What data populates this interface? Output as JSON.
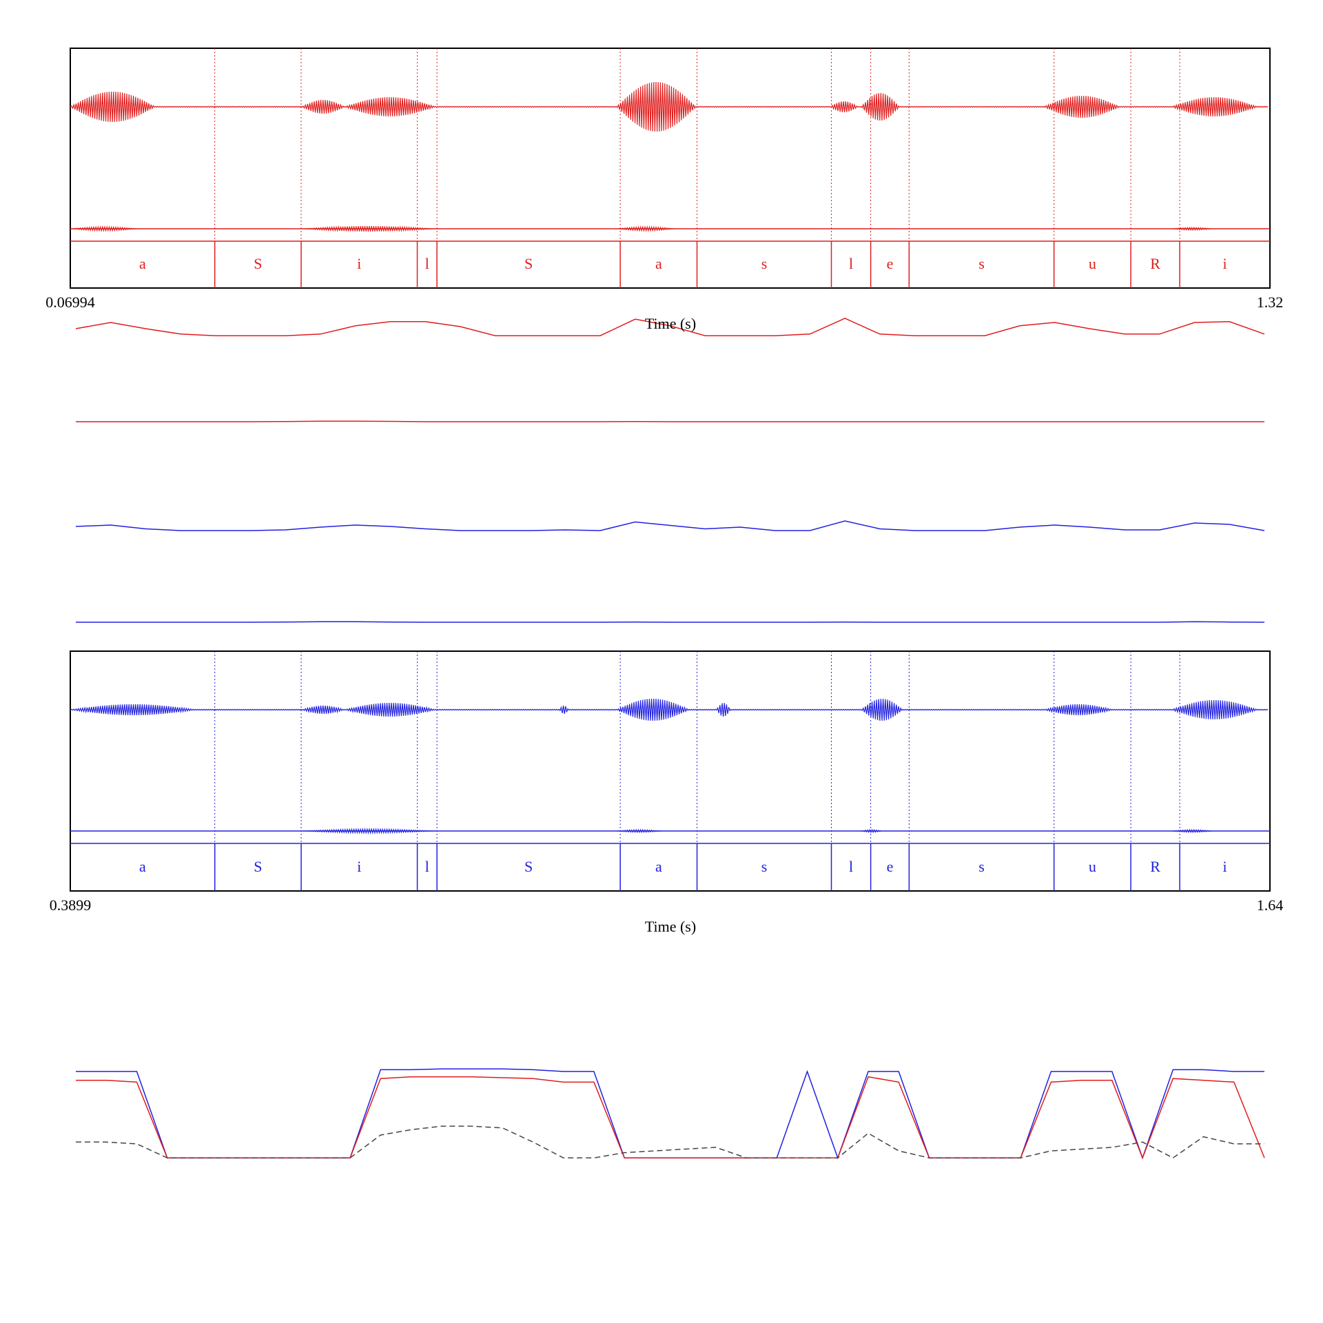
{
  "chart_data": [
    {
      "type": "line",
      "name": "waveform-red",
      "color": "#e01c1c",
      "x_start": "0.06994",
      "x_end": "1.32",
      "xlabel": "Time (s)",
      "segments": [
        "a",
        "S",
        "i",
        "l",
        "S",
        "a",
        "s",
        "l",
        "e",
        "s",
        "u",
        "R",
        "i"
      ],
      "boundaries_s": [
        0.06994,
        0.2205,
        0.3105,
        0.4315,
        0.452,
        0.643,
        0.723,
        0.863,
        0.904,
        0.944,
        1.095,
        1.175,
        1.226,
        1.32
      ]
    },
    {
      "type": "line",
      "name": "feature-curves",
      "series": [
        {
          "color": "#e01c1c",
          "values": [
            0.55,
            0.7,
            0.55,
            0.42,
            0.38,
            0.38,
            0.38,
            0.42,
            0.62,
            0.72,
            0.72,
            0.6,
            0.38,
            0.38,
            0.38,
            0.38,
            0.78,
            0.62,
            0.38,
            0.38,
            0.38,
            0.42,
            0.8,
            0.42,
            0.38,
            0.38,
            0.38,
            0.62,
            0.7,
            0.55,
            0.42,
            0.42,
            0.7,
            0.72,
            0.42
          ]
        },
        {
          "color": "#e01c1c",
          "values": [
            0.5,
            0.5,
            0.5,
            0.5,
            0.5,
            0.5,
            0.52,
            0.55,
            0.55,
            0.53,
            0.5,
            0.5,
            0.5,
            0.5,
            0.5,
            0.5,
            0.52,
            0.5,
            0.5,
            0.5,
            0.5,
            0.5,
            0.5,
            0.5,
            0.5,
            0.5,
            0.5,
            0.5,
            0.5,
            0.5,
            0.5,
            0.5,
            0.5,
            0.5,
            0.5
          ]
        },
        {
          "color": "#2020e0",
          "values": [
            0.62,
            0.66,
            0.55,
            0.5,
            0.5,
            0.5,
            0.52,
            0.6,
            0.66,
            0.62,
            0.55,
            0.5,
            0.5,
            0.5,
            0.52,
            0.5,
            0.75,
            0.65,
            0.55,
            0.6,
            0.5,
            0.5,
            0.78,
            0.55,
            0.5,
            0.5,
            0.5,
            0.6,
            0.66,
            0.6,
            0.52,
            0.52,
            0.72,
            0.68,
            0.5
          ]
        },
        {
          "color": "#2020e0",
          "values": [
            0.5,
            0.5,
            0.5,
            0.5,
            0.5,
            0.5,
            0.52,
            0.55,
            0.55,
            0.52,
            0.5,
            0.5,
            0.5,
            0.5,
            0.5,
            0.5,
            0.52,
            0.5,
            0.5,
            0.5,
            0.5,
            0.5,
            0.52,
            0.5,
            0.5,
            0.5,
            0.5,
            0.5,
            0.5,
            0.5,
            0.5,
            0.5,
            0.55,
            0.52,
            0.5
          ]
        }
      ]
    },
    {
      "type": "line",
      "name": "waveform-blue",
      "color": "#2020e0",
      "x_start": "0.3899",
      "x_end": "1.64",
      "xlabel": "Time (s)",
      "segments": [
        "a",
        "S",
        "i",
        "l",
        "S",
        "a",
        "s",
        "l",
        "e",
        "s",
        "u",
        "R",
        "i"
      ],
      "boundaries_s": [
        0.3899,
        0.5405,
        0.6305,
        0.7515,
        0.772,
        0.963,
        1.043,
        1.183,
        1.224,
        1.264,
        1.415,
        1.495,
        1.546,
        1.64
      ]
    },
    {
      "type": "line",
      "name": "bottom-curves",
      "ylim": [
        0,
        1
      ],
      "series": [
        {
          "color": "#2020e0",
          "dashed": false,
          "values": [
            1.0,
            1.0,
            1.0,
            0.02,
            0.02,
            0.02,
            0.02,
            0.02,
            0.02,
            0.02,
            1.02,
            1.02,
            1.03,
            1.03,
            1.03,
            1.02,
            1.0,
            1.0,
            0.02,
            0.02,
            0.02,
            0.02,
            0.02,
            0.02,
            1.0,
            0.02,
            1.0,
            1.0,
            0.02,
            0.02,
            0.02,
            0.02,
            1.0,
            1.0,
            1.0,
            0.02,
            1.02,
            1.02,
            1.0,
            1.0
          ]
        },
        {
          "color": "#e01c1c",
          "dashed": false,
          "values": [
            0.9,
            0.9,
            0.88,
            0.02,
            0.02,
            0.02,
            0.02,
            0.02,
            0.02,
            0.02,
            0.92,
            0.94,
            0.94,
            0.94,
            0.93,
            0.92,
            0.88,
            0.88,
            0.02,
            0.02,
            0.02,
            0.02,
            0.02,
            0.02,
            0.02,
            0.02,
            0.94,
            0.88,
            0.02,
            0.02,
            0.02,
            0.02,
            0.88,
            0.9,
            0.9,
            0.02,
            0.92,
            0.9,
            0.88,
            0.02
          ]
        },
        {
          "color": "#444444",
          "dashed": true,
          "values": [
            0.2,
            0.2,
            0.18,
            0.02,
            0.02,
            0.02,
            0.02,
            0.02,
            0.02,
            0.02,
            0.28,
            0.34,
            0.38,
            0.38,
            0.36,
            0.2,
            0.02,
            0.02,
            0.08,
            0.1,
            0.12,
            0.14,
            0.02,
            0.02,
            0.02,
            0.02,
            0.3,
            0.1,
            0.02,
            0.02,
            0.02,
            0.02,
            0.1,
            0.12,
            0.14,
            0.2,
            0.02,
            0.26,
            0.18,
            0.18
          ]
        }
      ]
    }
  ]
}
